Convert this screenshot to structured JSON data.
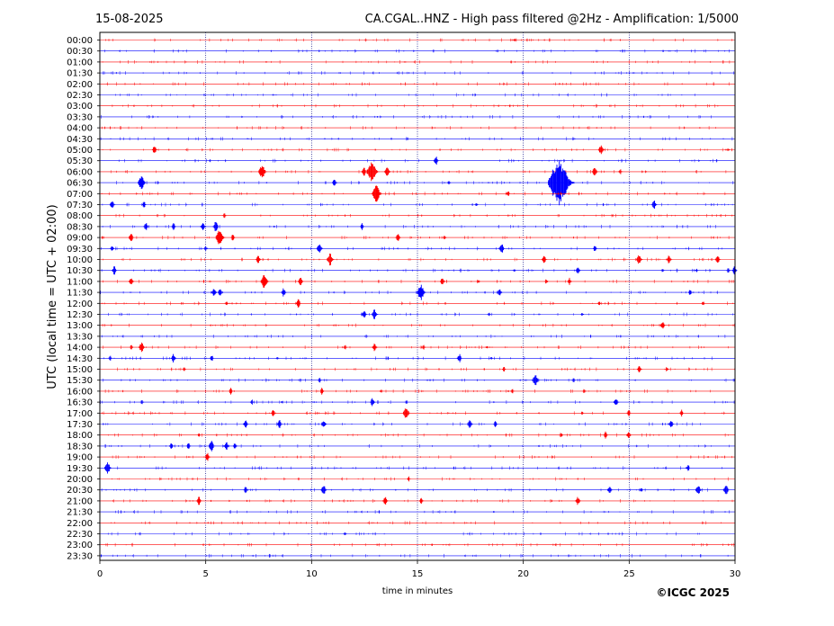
{
  "header": {
    "date": "15-08-2025",
    "title": "CA.CGAL..HNZ - High pass filtered @2Hz - Amplification: 1/5000"
  },
  "copyright": "©ICGC 2025",
  "chart_data": {
    "type": "line",
    "xlabel": "time in minutes",
    "ylabel": "UTC (local time = UTC + 02:00)",
    "xlim": [
      0,
      30
    ],
    "xticks": [
      "0",
      "5",
      "10",
      "15",
      "20",
      "25",
      "30"
    ],
    "vertical_gridlines_minutes": [
      5,
      10,
      15,
      20,
      25
    ],
    "trace_colors": {
      "even": "#ff0000",
      "odd": "#0000ff"
    },
    "rows": [
      {
        "label": "00:00",
        "events": [
          [
            19.6,
            2
          ]
        ]
      },
      {
        "label": "00:30",
        "events": []
      },
      {
        "label": "01:00",
        "events": []
      },
      {
        "label": "01:30",
        "events": []
      },
      {
        "label": "02:00",
        "events": []
      },
      {
        "label": "02:30",
        "events": []
      },
      {
        "label": "03:00",
        "events": []
      },
      {
        "label": "03:30",
        "events": []
      },
      {
        "label": "04:00",
        "events": []
      },
      {
        "label": "04:30",
        "events": [
          [
            7.0,
            1
          ]
        ]
      },
      {
        "label": "05:00",
        "events": [
          [
            2.6,
            5
          ],
          [
            23.7,
            6
          ],
          [
            29.7,
            2
          ]
        ]
      },
      {
        "label": "05:30",
        "events": [
          [
            15.9,
            5
          ]
        ]
      },
      {
        "label": "06:00",
        "events": [
          [
            7.7,
            8
          ],
          [
            12.5,
            5
          ],
          [
            12.9,
            12
          ],
          [
            13.6,
            6
          ],
          [
            23.4,
            6
          ],
          [
            24.6,
            3
          ]
        ]
      },
      {
        "label": "06:30",
        "events": [
          [
            2.0,
            8
          ],
          [
            11.1,
            5
          ],
          [
            16.5,
            3
          ],
          [
            21.8,
            26
          ]
        ]
      },
      {
        "label": "07:00",
        "events": [
          [
            13.1,
            10
          ],
          [
            19.3,
            4
          ]
        ]
      },
      {
        "label": "07:30",
        "events": [
          [
            0.6,
            5
          ],
          [
            2.1,
            4
          ],
          [
            17.8,
            2
          ],
          [
            26.2,
            5
          ]
        ]
      },
      {
        "label": "08:00",
        "events": [
          [
            5.9,
            3
          ]
        ]
      },
      {
        "label": "08:30",
        "events": [
          [
            2.2,
            5
          ],
          [
            3.5,
            4
          ],
          [
            4.9,
            5
          ],
          [
            5.5,
            6
          ],
          [
            12.4,
            4
          ]
        ]
      },
      {
        "label": "09:00",
        "events": [
          [
            1.5,
            5
          ],
          [
            5.7,
            9
          ],
          [
            6.3,
            4
          ],
          [
            14.1,
            5
          ],
          [
            16.3,
            3
          ]
        ]
      },
      {
        "label": "09:30",
        "events": [
          [
            0.6,
            4
          ],
          [
            5.0,
            3
          ],
          [
            10.4,
            6
          ],
          [
            19.0,
            6
          ],
          [
            23.4,
            4
          ]
        ]
      },
      {
        "label": "10:00",
        "events": [
          [
            7.5,
            5
          ],
          [
            10.9,
            7
          ],
          [
            21.0,
            5
          ],
          [
            25.5,
            6
          ],
          [
            26.9,
            5
          ],
          [
            29.2,
            5
          ]
        ]
      },
      {
        "label": "10:30",
        "events": [
          [
            0.7,
            5
          ],
          [
            19.6,
            2
          ],
          [
            22.6,
            5
          ],
          [
            26.6,
            2
          ],
          [
            28.2,
            2
          ],
          [
            29.7,
            3
          ],
          [
            30.0,
            5
          ]
        ]
      },
      {
        "label": "11:00",
        "events": [
          [
            1.5,
            5
          ],
          [
            7.8,
            8
          ],
          [
            9.5,
            5
          ],
          [
            16.2,
            5
          ],
          [
            17.9,
            2
          ],
          [
            21.1,
            3
          ],
          [
            22.2,
            4
          ]
        ]
      },
      {
        "label": "11:30",
        "events": [
          [
            5.4,
            5
          ],
          [
            5.7,
            5
          ],
          [
            8.7,
            5
          ],
          [
            15.2,
            9
          ],
          [
            18.9,
            5
          ],
          [
            27.9,
            4
          ]
        ]
      },
      {
        "label": "12:00",
        "events": [
          [
            6.0,
            3
          ],
          [
            9.4,
            5
          ],
          [
            23.6,
            3
          ],
          [
            28.5,
            2
          ]
        ]
      },
      {
        "label": "12:30",
        "events": [
          [
            12.5,
            5
          ],
          [
            13.0,
            6
          ],
          [
            18.4,
            2
          ],
          [
            22.8,
            2
          ]
        ]
      },
      {
        "label": "13:00",
        "events": [
          [
            26.6,
            5
          ]
        ]
      },
      {
        "label": "13:30",
        "events": []
      },
      {
        "label": "14:00",
        "events": [
          [
            1.5,
            3
          ],
          [
            2.0,
            6
          ],
          [
            11.6,
            3
          ],
          [
            13.0,
            5
          ],
          [
            15.3,
            3
          ],
          [
            18.3,
            2
          ]
        ]
      },
      {
        "label": "14:30",
        "events": [
          [
            0.5,
            3
          ],
          [
            3.5,
            5
          ],
          [
            5.3,
            4
          ],
          [
            8.4,
            2
          ],
          [
            17.0,
            5
          ],
          [
            18.5,
            2
          ]
        ]
      },
      {
        "label": "15:00",
        "events": [
          [
            4.0,
            3
          ],
          [
            19.1,
            3
          ],
          [
            25.5,
            5
          ],
          [
            26.8,
            3
          ]
        ]
      },
      {
        "label": "15:30",
        "events": [
          [
            10.4,
            3
          ],
          [
            20.6,
            7
          ],
          [
            22.4,
            3
          ]
        ]
      },
      {
        "label": "16:00",
        "events": [
          [
            6.2,
            4
          ],
          [
            10.5,
            4
          ],
          [
            13.3,
            2
          ],
          [
            19.5,
            3
          ],
          [
            22.9,
            3
          ]
        ]
      },
      {
        "label": "16:30",
        "events": [
          [
            2.0,
            3
          ],
          [
            7.2,
            3
          ],
          [
            12.9,
            5
          ],
          [
            14.5,
            2
          ],
          [
            24.4,
            5
          ]
        ]
      },
      {
        "label": "17:00",
        "events": [
          [
            8.2,
            4
          ],
          [
            14.5,
            7
          ],
          [
            22.8,
            2
          ],
          [
            25.0,
            4
          ],
          [
            27.5,
            4
          ]
        ]
      },
      {
        "label": "17:30",
        "events": [
          [
            6.9,
            5
          ],
          [
            8.5,
            5
          ],
          [
            10.6,
            5
          ],
          [
            17.5,
            5
          ],
          [
            18.7,
            4
          ],
          [
            27.0,
            5
          ]
        ]
      },
      {
        "label": "18:00",
        "events": [
          [
            4.7,
            2
          ],
          [
            21.8,
            3
          ],
          [
            23.9,
            4
          ],
          [
            25.0,
            5
          ]
        ]
      },
      {
        "label": "18:30",
        "events": [
          [
            3.4,
            4
          ],
          [
            4.2,
            4
          ],
          [
            5.3,
            6
          ],
          [
            6.0,
            5
          ],
          [
            6.4,
            4
          ]
        ]
      },
      {
        "label": "19:00",
        "events": [
          [
            5.1,
            5
          ]
        ]
      },
      {
        "label": "19:30",
        "events": [
          [
            0.4,
            7
          ],
          [
            27.8,
            4
          ]
        ]
      },
      {
        "label": "20:00",
        "events": [
          [
            14.6,
            3
          ]
        ]
      },
      {
        "label": "20:30",
        "events": [
          [
            6.9,
            4
          ],
          [
            10.6,
            6
          ],
          [
            24.1,
            5
          ],
          [
            25.6,
            3
          ],
          [
            28.3,
            6
          ],
          [
            29.6,
            6
          ]
        ]
      },
      {
        "label": "21:00",
        "events": [
          [
            4.7,
            5
          ],
          [
            13.5,
            5
          ],
          [
            15.2,
            4
          ],
          [
            22.6,
            5
          ]
        ]
      },
      {
        "label": "21:30",
        "events": []
      },
      {
        "label": "22:00",
        "events": []
      },
      {
        "label": "22:30",
        "events": [
          [
            11.6,
            2
          ]
        ]
      },
      {
        "label": "23:00",
        "events": []
      },
      {
        "label": "23:30",
        "events": []
      }
    ]
  }
}
